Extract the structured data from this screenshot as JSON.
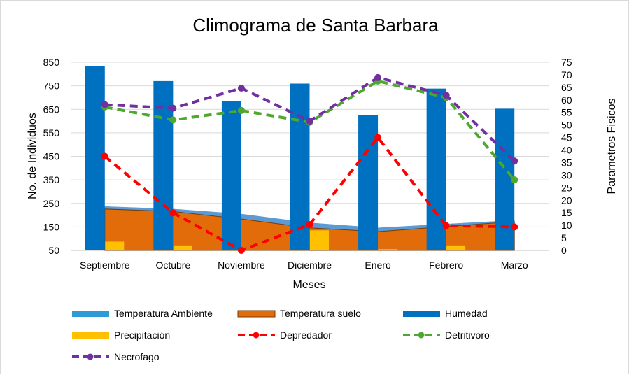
{
  "chart_data": {
    "type": "combo",
    "title": "Climograma de Santa Barbara",
    "xlabel": "Meses",
    "ylabel": "No. de Individuos",
    "y2label": "Parametros Fisicos",
    "categories": [
      "Septiembre",
      "Octubre",
      "Noviembre",
      "Diciembre",
      "Enero",
      "Febrero",
      "Marzo"
    ],
    "ylim": [
      50,
      850
    ],
    "yticks": [
      "850",
      "750",
      "650",
      "550",
      "450",
      "350",
      "250",
      "150",
      "50"
    ],
    "y2lim": [
      0,
      75
    ],
    "y2ticks": [
      "75",
      "70",
      "65",
      "60",
      "55",
      "50",
      "45",
      "40",
      "35",
      "30",
      "25",
      "20",
      "15",
      "10",
      "5",
      "0"
    ],
    "series": [
      {
        "name": "Temperatura Ambiente",
        "type": "area",
        "axis": "secondary",
        "color": "#5B9BD5",
        "values": [
          17.5,
          16.5,
          14.5,
          11,
          9,
          10.5,
          12
        ]
      },
      {
        "name": "Temperatura suelo",
        "type": "area",
        "axis": "secondary",
        "color": "#E36C0A",
        "values": [
          16.5,
          15.5,
          12.5,
          9,
          7.5,
          9.5,
          11.5
        ]
      },
      {
        "name": "Humedad",
        "type": "bar",
        "axis": "secondary",
        "color": "#0070C0",
        "values": [
          73.5,
          67.5,
          59.5,
          66.5,
          54,
          64.5,
          56.5
        ]
      },
      {
        "name": "Precipitación",
        "type": "bar",
        "axis": "secondary",
        "color": "#FFC000",
        "values": [
          3.5,
          2,
          0,
          8,
          0.5,
          2,
          0
        ]
      },
      {
        "name": "Depredador",
        "type": "line",
        "axis": "primary",
        "color": "#FF0000",
        "values": [
          450,
          210,
          50,
          160,
          530,
          155,
          150
        ]
      },
      {
        "name": "Detritivoro",
        "type": "line",
        "axis": "primary",
        "color": "#4EA72E",
        "values": [
          660,
          605,
          645,
          595,
          770,
          700,
          350
        ]
      },
      {
        "name": "Necrofago",
        "type": "line",
        "axis": "primary",
        "color": "#7030A0",
        "values": [
          670,
          655,
          740,
          600,
          785,
          710,
          430
        ]
      }
    ],
    "legend": [
      {
        "label": "Temperatura Ambiente",
        "kind": "area",
        "color": "#2E9BD6"
      },
      {
        "label": "Temperatura suelo",
        "kind": "area",
        "color": "#E36C0A"
      },
      {
        "label": "Humedad",
        "kind": "bar",
        "color": "#0070C0"
      },
      {
        "label": "Precipitación",
        "kind": "bar",
        "color": "#FFC000"
      },
      {
        "label": "Depredador",
        "kind": "line",
        "color": "#FF0000"
      },
      {
        "label": "Detritivoro",
        "kind": "line",
        "color": "#4EA72E"
      },
      {
        "label": "Necrofago",
        "kind": "line",
        "color": "#7030A0"
      }
    ],
    "legend_position": "bottom"
  }
}
